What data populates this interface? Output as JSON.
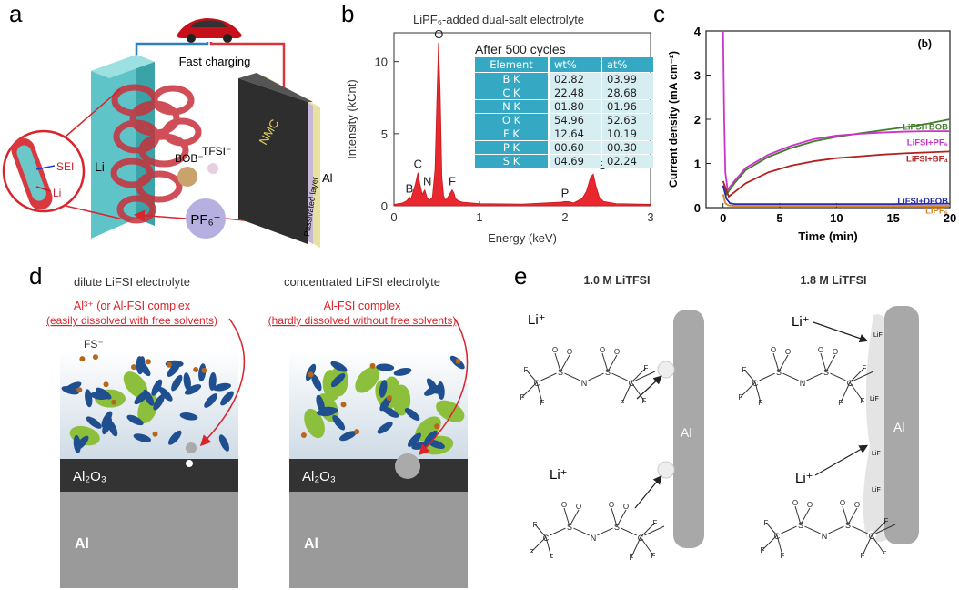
{
  "panels": {
    "a": {
      "letter": "a",
      "fast_charging": "Fast charging",
      "sei": "SEI",
      "li_small": "Li",
      "li_anode": "Li",
      "bob": "BOB⁻",
      "tfsi": "TFSI⁻",
      "pf6": "PF₆⁻",
      "nmc": "NMC",
      "passivated": "Passivated layer",
      "al": "Al"
    },
    "b": {
      "letter": "b",
      "title": "LiPF₆-added dual-salt electrolyte",
      "inset_title": "After 500 cycles",
      "table_headers": [
        "Element",
        "wt%",
        "at%"
      ],
      "table_rows": [
        [
          "B K",
          "02.82",
          "03.99"
        ],
        [
          "C K",
          "22.48",
          "28.68"
        ],
        [
          "N K",
          "01.80",
          "01.96"
        ],
        [
          "O K",
          "54.96",
          "52.63"
        ],
        [
          "F K",
          "12.64",
          "10.19"
        ],
        [
          "P K",
          "00.60",
          "00.30"
        ],
        [
          "S K",
          "04.69",
          "02.24"
        ]
      ],
      "peak_labels": [
        "B",
        "C",
        "N",
        "O",
        "F",
        "P",
        "S"
      ]
    },
    "c": {
      "letter": "c",
      "tag": "(b)",
      "series_labels": [
        "LiFSI+BOB",
        "LiFSI+PF₆",
        "LiFSI+BF₄",
        "LiFSI+DFOB",
        "LiPF₆"
      ]
    },
    "d": {
      "letter": "d",
      "left_title": "dilute LiFSI electrolyte",
      "left_note1": "Al³⁺ (or Al-FSI complex",
      "left_note2": "(easily dissolved with free solvents)",
      "fs": "FS⁻",
      "right_title": "concentrated LiFSI electrolyte",
      "right_note1": "Al-FSI complex",
      "right_note2": "(hardly dissolved without free solvents)",
      "oxide": "Al₂O₃",
      "al": "Al"
    },
    "e": {
      "letter": "e",
      "left_title": "1.0 M LiTFSI",
      "right_title": "1.8 M LiTFSI",
      "li_plus": "Li⁺",
      "al": "Al",
      "lif": "LiF"
    }
  },
  "chart_data": [
    {
      "type": "line",
      "panel": "b",
      "xlabel": "Energy (keV)",
      "ylabel": "Intensity (kCnt)",
      "xlim": [
        0,
        3
      ],
      "ylim": [
        0,
        12
      ],
      "xticks": [
        0,
        1,
        2,
        3
      ],
      "yticks": [
        0,
        5,
        10
      ],
      "series": [
        {
          "x": [
            0.0,
            0.1,
            0.15,
            0.18,
            0.2,
            0.25,
            0.28,
            0.3,
            0.33,
            0.36,
            0.39,
            0.42,
            0.45,
            0.48,
            0.5,
            0.52,
            0.54,
            0.56,
            0.58,
            0.6,
            0.62,
            0.65,
            0.68,
            0.7,
            0.72,
            0.75,
            0.8,
            1.0,
            1.5,
            1.95,
            2.0,
            2.05,
            2.1,
            2.2,
            2.25,
            2.3,
            2.33,
            2.36,
            2.4,
            2.45,
            2.6,
            3.0
          ],
          "y": [
            0.1,
            0.2,
            0.35,
            0.6,
            0.5,
            1.5,
            2.3,
            1.6,
            0.8,
            1.1,
            0.5,
            0.4,
            0.6,
            2.5,
            7.0,
            11.3,
            8.0,
            2.0,
            0.7,
            0.4,
            0.5,
            0.8,
            1.1,
            0.9,
            0.5,
            0.35,
            0.25,
            0.15,
            0.12,
            0.25,
            0.3,
            0.28,
            0.2,
            0.5,
            1.0,
            2.0,
            2.2,
            1.4,
            0.6,
            0.3,
            0.15,
            0.1
          ]
        }
      ]
    },
    {
      "type": "line",
      "panel": "c",
      "xlabel": "Time (min)",
      "ylabel": "Current density (mA cm⁻²)",
      "xlim": [
        -1.5,
        20
      ],
      "ylim": [
        0,
        4
      ],
      "xticks": [
        0,
        5,
        10,
        15,
        20
      ],
      "yticks": [
        0,
        1,
        2,
        3,
        4
      ],
      "series": [
        {
          "name": "LiFSI+BOB",
          "color": "#3f7f2a",
          "x": [
            0,
            0.3,
            1,
            2,
            4,
            6,
            8,
            10,
            12,
            14,
            16,
            18,
            20
          ],
          "y": [
            0.5,
            0.3,
            0.55,
            0.85,
            1.15,
            1.35,
            1.5,
            1.6,
            1.68,
            1.75,
            1.82,
            1.9,
            2.0
          ]
        },
        {
          "name": "LiFSI+PF₆",
          "color": "#cc33cc",
          "x": [
            0,
            0.1,
            0.2,
            0.4,
            1,
            2,
            4,
            6,
            8,
            10,
            12,
            14,
            16,
            18,
            20
          ],
          "y": [
            4.0,
            2.0,
            0.8,
            0.4,
            0.6,
            0.9,
            1.2,
            1.4,
            1.55,
            1.63,
            1.67,
            1.7,
            1.72,
            1.73,
            1.73
          ]
        },
        {
          "name": "LiFSI+BF₄",
          "color": "#b22222",
          "x": [
            0,
            0.5,
            1,
            2,
            4,
            6,
            8,
            10,
            12,
            14,
            16,
            18,
            20
          ],
          "y": [
            0.6,
            0.25,
            0.35,
            0.55,
            0.8,
            0.95,
            1.05,
            1.12,
            1.16,
            1.2,
            1.23,
            1.25,
            1.27
          ]
        },
        {
          "name": "LiFSI+DFOB",
          "color": "#2a2aa8",
          "x": [
            0,
            0.3,
            0.6,
            1,
            2,
            5,
            10,
            15,
            20
          ],
          "y": [
            0.5,
            0.2,
            0.1,
            0.08,
            0.08,
            0.08,
            0.08,
            0.08,
            0.09
          ]
        },
        {
          "name": "LiPF₆",
          "color": "#d8862a",
          "x": [
            0,
            0.2,
            0.5,
            1,
            2,
            5,
            10,
            15,
            20
          ],
          "y": [
            0.3,
            0.1,
            0.05,
            0.04,
            0.04,
            0.04,
            0.04,
            0.04,
            0.04
          ]
        }
      ]
    }
  ]
}
